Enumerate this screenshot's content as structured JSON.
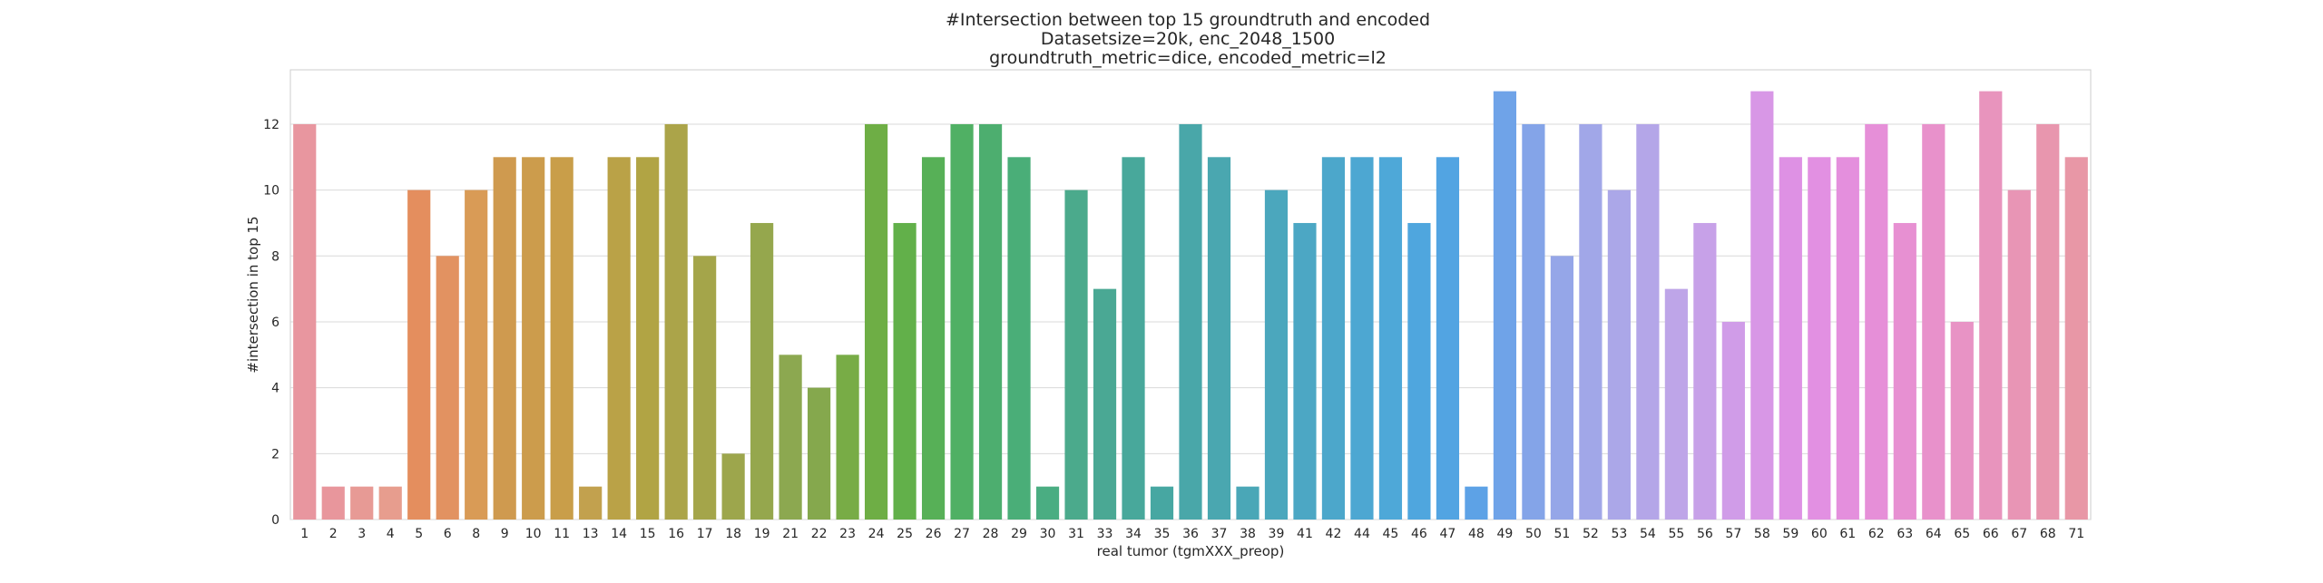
{
  "chart_data": {
    "type": "bar",
    "title": [
      "#Intersection between top 15 groundtruth and encoded",
      "Datasetsize=20k, enc_2048_1500",
      "groundtruth_metric=dice, encoded_metric=l2"
    ],
    "xlabel": "real tumor (tgmXXX_preop)",
    "ylabel": "#intersection in top 15",
    "ylim": [
      0,
      13.65
    ],
    "yticks": [
      0,
      2,
      4,
      6,
      8,
      10,
      12
    ],
    "grid": "y",
    "categories": [
      "1",
      "2",
      "3",
      "4",
      "5",
      "6",
      "8",
      "9",
      "10",
      "11",
      "13",
      "14",
      "15",
      "16",
      "17",
      "18",
      "19",
      "21",
      "22",
      "23",
      "24",
      "25",
      "26",
      "27",
      "28",
      "29",
      "30",
      "31",
      "33",
      "34",
      "35",
      "36",
      "37",
      "38",
      "39",
      "41",
      "42",
      "44",
      "45",
      "46",
      "47",
      "48",
      "49",
      "50",
      "51",
      "52",
      "53",
      "54",
      "55",
      "56",
      "57",
      "58",
      "59",
      "60",
      "61",
      "62",
      "63",
      "64",
      "65",
      "66",
      "67",
      "68",
      "71"
    ],
    "values": [
      12,
      1,
      1,
      1,
      10,
      8,
      10,
      11,
      11,
      11,
      1,
      11,
      11,
      12,
      8,
      2,
      9,
      5,
      4,
      5,
      12,
      9,
      11,
      12,
      12,
      11,
      1,
      10,
      7,
      11,
      1,
      12,
      11,
      1,
      10,
      9,
      11,
      11,
      11,
      9,
      11,
      1,
      13,
      12,
      8,
      12,
      10,
      12,
      7,
      9,
      6,
      13,
      11,
      11,
      11,
      12,
      9,
      12,
      6,
      13,
      10,
      12,
      11
    ],
    "colors": [
      "#e8969f",
      "#e8969c",
      "#e79a95",
      "#e79d8e",
      "#e48e5e",
      "#e29261",
      "#d99b56",
      "#cf9a4f",
      "#cc9c4c",
      "#c99e49",
      "#c2a14e",
      "#baa247",
      "#b1a444",
      "#aba449",
      "#a4a54a",
      "#9da64c",
      "#95a74d",
      "#8ca850",
      "#85a84d",
      "#78ac46",
      "#6eae45",
      "#62b04a",
      "#57b057",
      "#50b064",
      "#4dae6f",
      "#4aae78",
      "#4aad82",
      "#4baa8c",
      "#4aa894",
      "#48a89b",
      "#47a7a2",
      "#49a7a9",
      "#4aa7b0",
      "#4aa7b7",
      "#4ba7bd",
      "#4ca7c4",
      "#4ca7cb",
      "#4da7d2",
      "#4ea8d8",
      "#4fa6de",
      "#52a4e2",
      "#5da2e6",
      "#6fa3e8",
      "#84a4e8",
      "#95a6e8",
      "#a1a7e8",
      "#aba7e8",
      "#b4a6e8",
      "#bea5e8",
      "#c7a1e8",
      "#d09ce8",
      "#d897e6",
      "#de91e4",
      "#e290e2",
      "#e48fdd",
      "#e68fd8",
      "#e790d2",
      "#e891cb",
      "#e893c5",
      "#e894bd",
      "#e895b5",
      "#e896ae",
      "#e897a6"
    ]
  }
}
